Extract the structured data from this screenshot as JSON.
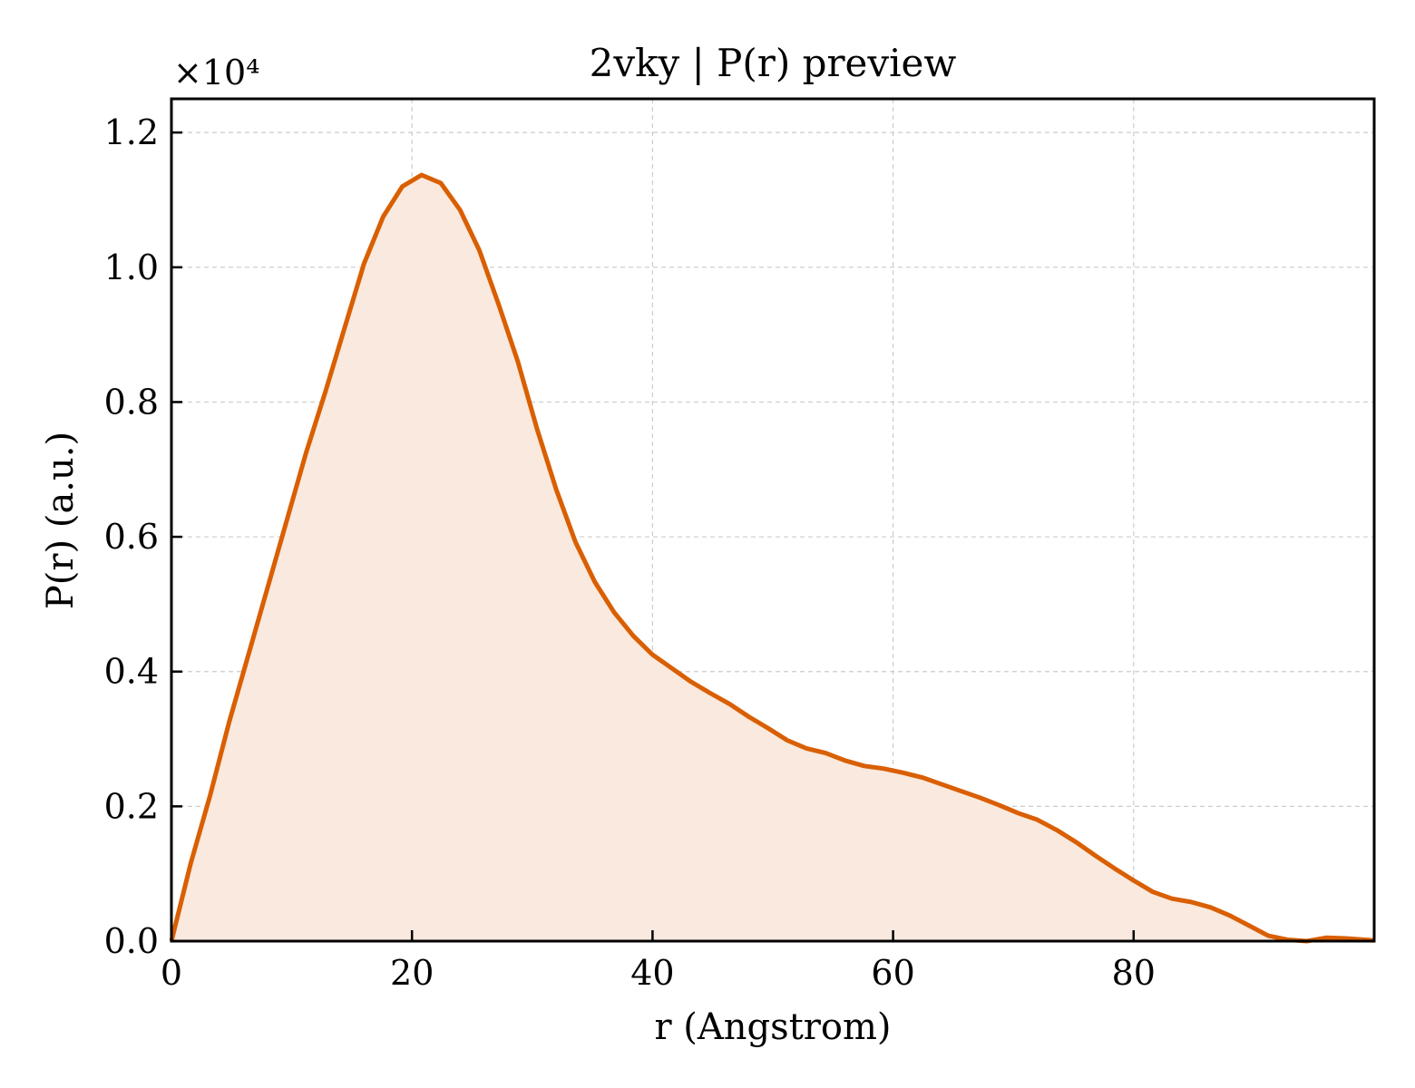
{
  "chart_data": {
    "type": "area",
    "title": "2vky | P(r) preview",
    "xlabel": "r (Angstrom)",
    "ylabel": "P(r) (a.u.)",
    "y_multiplier": "×10⁴",
    "xlim": [
      0,
      100
    ],
    "ylim": [
      0,
      1.25
    ],
    "xticks": [
      0,
      20,
      40,
      60,
      80
    ],
    "yticks": [
      0.0,
      0.2,
      0.4,
      0.6,
      0.8,
      1.0,
      1.2
    ],
    "xtick_labels": [
      "0",
      "20",
      "40",
      "60",
      "80"
    ],
    "ytick_labels": [
      "0.0",
      "0.2",
      "0.4",
      "0.6",
      "0.8",
      "1.0",
      "1.2"
    ],
    "grid": true,
    "colors": {
      "line": "#d95f02",
      "fill": "#f9e9de"
    },
    "series": [
      {
        "x": [
          0,
          1.6,
          3.2,
          4.8,
          6.4,
          8.0,
          9.6,
          11.2,
          12.8,
          14.4,
          16.0,
          17.6,
          19.2,
          20.8,
          22.4,
          24.0,
          25.6,
          27.2,
          28.8,
          30.4,
          32.0,
          33.6,
          35.2,
          36.8,
          38.4,
          40.0,
          41.6,
          43.2,
          44.8,
          46.4,
          48.0,
          49.6,
          51.2,
          52.8,
          54.4,
          56.0,
          57.6,
          59.2,
          60.8,
          62.4,
          64.0,
          65.6,
          67.2,
          68.8,
          70.4,
          72.0,
          73.6,
          75.2,
          76.8,
          78.4,
          80.0,
          81.6,
          83.2,
          84.8,
          86.4,
          88.0,
          89.6,
          91.2,
          92.8,
          94.4,
          96.0,
          97.6,
          100.0
        ],
        "y": [
          0.0,
          0.115,
          0.215,
          0.325,
          0.425,
          0.525,
          0.625,
          0.725,
          0.815,
          0.91,
          1.005,
          1.075,
          1.12,
          1.137,
          1.125,
          1.085,
          1.025,
          0.945,
          0.86,
          0.76,
          0.67,
          0.592,
          0.533,
          0.488,
          0.453,
          0.425,
          0.405,
          0.385,
          0.368,
          0.352,
          0.333,
          0.316,
          0.298,
          0.286,
          0.279,
          0.268,
          0.26,
          0.256,
          0.25,
          0.243,
          0.233,
          0.223,
          0.213,
          0.202,
          0.19,
          0.18,
          0.165,
          0.147,
          0.127,
          0.108,
          0.09,
          0.073,
          0.063,
          0.058,
          0.05,
          0.038,
          0.023,
          0.008,
          0.002,
          0.0,
          0.005,
          0.004,
          0.001
        ]
      }
    ]
  }
}
